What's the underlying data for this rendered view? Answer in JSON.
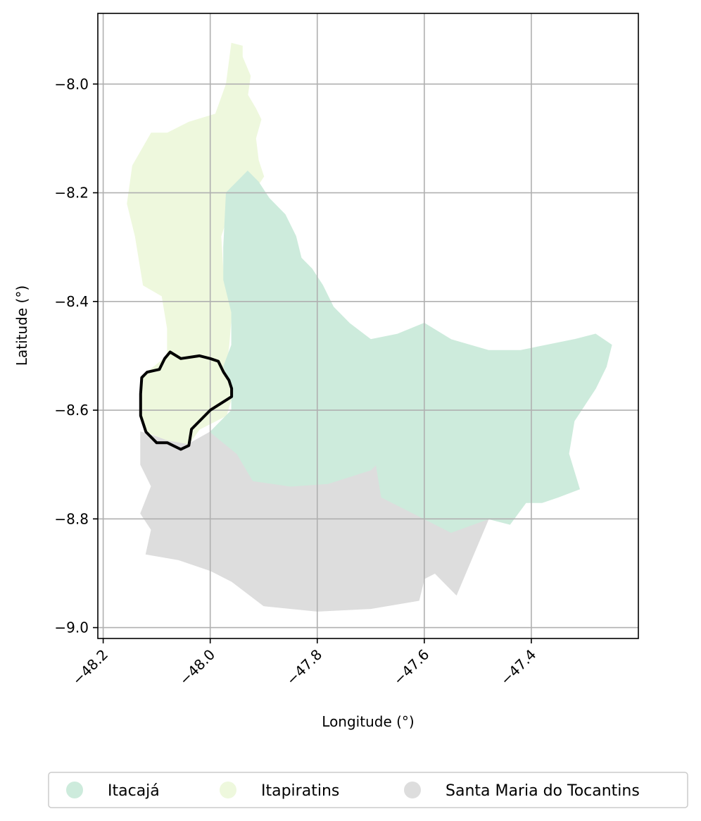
{
  "chart_data": {
    "type": "map",
    "xlabel": "Longitude (°)",
    "ylabel": "Latitude (°)",
    "xlim": [
      -48.21,
      -47.2
    ],
    "ylim": [
      -9.02,
      -7.87
    ],
    "x_ticks": [
      -48.2,
      -48.0,
      -47.8,
      -47.6,
      -47.4
    ],
    "x_tick_labels": [
      "−48.2",
      "−48.0",
      "−47.8",
      "−47.6",
      "−47.4"
    ],
    "y_ticks": [
      -8.0,
      -8.2,
      -8.4,
      -8.6,
      -8.8,
      -9.0
    ],
    "y_tick_labels": [
      "−8.0",
      "−8.2",
      "−8.4",
      "−8.6",
      "−8.8",
      "−9.0"
    ],
    "grid": true,
    "legend_position": "bottom-center",
    "regions": [
      {
        "name": "Santa Maria do Tocantins",
        "color": "#dddddd",
        "polygon": [
          [
            -48.13,
            -8.64
          ],
          [
            -48.08,
            -8.655
          ],
          [
            -48.04,
            -8.662
          ],
          [
            -48.0,
            -8.64
          ],
          [
            -47.95,
            -8.68
          ],
          [
            -47.92,
            -8.73
          ],
          [
            -47.85,
            -8.74
          ],
          [
            -47.78,
            -8.735
          ],
          [
            -47.7,
            -8.71
          ],
          [
            -47.69,
            -8.7
          ],
          [
            -47.68,
            -8.76
          ],
          [
            -47.62,
            -8.79
          ],
          [
            -47.55,
            -8.825
          ],
          [
            -47.48,
            -8.8
          ],
          [
            -47.54,
            -8.94
          ],
          [
            -47.58,
            -8.9
          ],
          [
            -47.6,
            -8.91
          ],
          [
            -47.61,
            -8.95
          ],
          [
            -47.7,
            -8.965
          ],
          [
            -47.8,
            -8.97
          ],
          [
            -47.9,
            -8.96
          ],
          [
            -47.96,
            -8.915
          ],
          [
            -48.0,
            -8.895
          ],
          [
            -48.06,
            -8.875
          ],
          [
            -48.12,
            -8.865
          ],
          [
            -48.11,
            -8.82
          ],
          [
            -48.13,
            -8.79
          ],
          [
            -48.11,
            -8.74
          ],
          [
            -48.13,
            -8.7
          ]
        ]
      },
      {
        "name": "Itapiratins",
        "color": "#eef8dd",
        "polygon": [
          [
            -47.96,
            -7.925
          ],
          [
            -47.94,
            -7.93
          ],
          [
            -47.94,
            -7.95
          ],
          [
            -47.925,
            -7.985
          ],
          [
            -47.93,
            -8.02
          ],
          [
            -47.915,
            -8.045
          ],
          [
            -47.905,
            -8.065
          ],
          [
            -47.915,
            -8.1
          ],
          [
            -47.91,
            -8.14
          ],
          [
            -47.9,
            -8.17
          ],
          [
            -47.92,
            -8.2
          ],
          [
            -47.96,
            -8.22
          ],
          [
            -47.98,
            -8.28
          ],
          [
            -47.975,
            -8.36
          ],
          [
            -47.96,
            -8.42
          ],
          [
            -47.965,
            -8.48
          ],
          [
            -47.97,
            -8.52
          ],
          [
            -47.955,
            -8.56
          ],
          [
            -47.97,
            -8.61
          ],
          [
            -48.02,
            -8.635
          ],
          [
            -48.04,
            -8.662
          ],
          [
            -48.08,
            -8.655
          ],
          [
            -48.12,
            -8.64
          ],
          [
            -48.13,
            -8.6
          ],
          [
            -48.13,
            -8.54
          ],
          [
            -48.08,
            -8.5
          ],
          [
            -48.08,
            -8.45
          ],
          [
            -48.09,
            -8.39
          ],
          [
            -48.125,
            -8.37
          ],
          [
            -48.14,
            -8.28
          ],
          [
            -48.155,
            -8.22
          ],
          [
            -48.145,
            -8.15
          ],
          [
            -48.11,
            -8.09
          ],
          [
            -48.08,
            -8.09
          ],
          [
            -48.04,
            -8.07
          ],
          [
            -47.99,
            -8.055
          ],
          [
            -47.97,
            -8.0
          ]
        ]
      },
      {
        "name": "Itacajá",
        "color": "#cdebdc",
        "polygon": [
          [
            -47.93,
            -8.16
          ],
          [
            -47.91,
            -8.18
          ],
          [
            -47.89,
            -8.21
          ],
          [
            -47.86,
            -8.24
          ],
          [
            -47.84,
            -8.28
          ],
          [
            -47.83,
            -8.32
          ],
          [
            -47.81,
            -8.34
          ],
          [
            -47.79,
            -8.37
          ],
          [
            -47.77,
            -8.41
          ],
          [
            -47.74,
            -8.44
          ],
          [
            -47.7,
            -8.47
          ],
          [
            -47.65,
            -8.46
          ],
          [
            -47.6,
            -8.44
          ],
          [
            -47.55,
            -8.47
          ],
          [
            -47.48,
            -8.49
          ],
          [
            -47.42,
            -8.49
          ],
          [
            -47.37,
            -8.48
          ],
          [
            -47.32,
            -8.47
          ],
          [
            -47.28,
            -8.46
          ],
          [
            -47.25,
            -8.48
          ],
          [
            -47.26,
            -8.52
          ],
          [
            -47.28,
            -8.56
          ],
          [
            -47.32,
            -8.62
          ],
          [
            -47.33,
            -8.68
          ],
          [
            -47.31,
            -8.745
          ],
          [
            -47.35,
            -8.76
          ],
          [
            -47.38,
            -8.77
          ],
          [
            -47.41,
            -8.77
          ],
          [
            -47.44,
            -8.81
          ],
          [
            -47.48,
            -8.8
          ],
          [
            -47.55,
            -8.825
          ],
          [
            -47.62,
            -8.79
          ],
          [
            -47.68,
            -8.76
          ],
          [
            -47.69,
            -8.7
          ],
          [
            -47.7,
            -8.71
          ],
          [
            -47.78,
            -8.735
          ],
          [
            -47.85,
            -8.74
          ],
          [
            -47.92,
            -8.73
          ],
          [
            -47.95,
            -8.68
          ],
          [
            -48.0,
            -8.64
          ],
          [
            -47.96,
            -8.6
          ],
          [
            -47.96,
            -8.56
          ],
          [
            -47.975,
            -8.52
          ],
          [
            -47.96,
            -8.48
          ],
          [
            -47.96,
            -8.42
          ],
          [
            -47.975,
            -8.36
          ],
          [
            -47.975,
            -8.3
          ],
          [
            -47.97,
            -8.2
          ]
        ]
      }
    ],
    "outline": {
      "color": "#000000",
      "polygon": [
        [
          -48.075,
          -8.493
        ],
        [
          -48.055,
          -8.505
        ],
        [
          -48.02,
          -8.5
        ],
        [
          -48.0,
          -8.505
        ],
        [
          -47.985,
          -8.51
        ],
        [
          -47.975,
          -8.53
        ],
        [
          -47.965,
          -8.545
        ],
        [
          -47.96,
          -8.56
        ],
        [
          -47.96,
          -8.575
        ],
        [
          -48.0,
          -8.6
        ],
        [
          -48.035,
          -8.635
        ],
        [
          -48.04,
          -8.665
        ],
        [
          -48.055,
          -8.672
        ],
        [
          -48.08,
          -8.66
        ],
        [
          -48.1,
          -8.66
        ],
        [
          -48.12,
          -8.64
        ],
        [
          -48.13,
          -8.61
        ],
        [
          -48.13,
          -8.57
        ],
        [
          -48.128,
          -8.54
        ],
        [
          -48.118,
          -8.53
        ],
        [
          -48.095,
          -8.525
        ],
        [
          -48.085,
          -8.505
        ]
      ]
    },
    "legend": [
      {
        "label": "Itacajá",
        "color": "#cdebdc"
      },
      {
        "label": "Itapiratins",
        "color": "#eef8dd"
      },
      {
        "label": "Santa Maria do Tocantins",
        "color": "#dddddd"
      }
    ]
  }
}
